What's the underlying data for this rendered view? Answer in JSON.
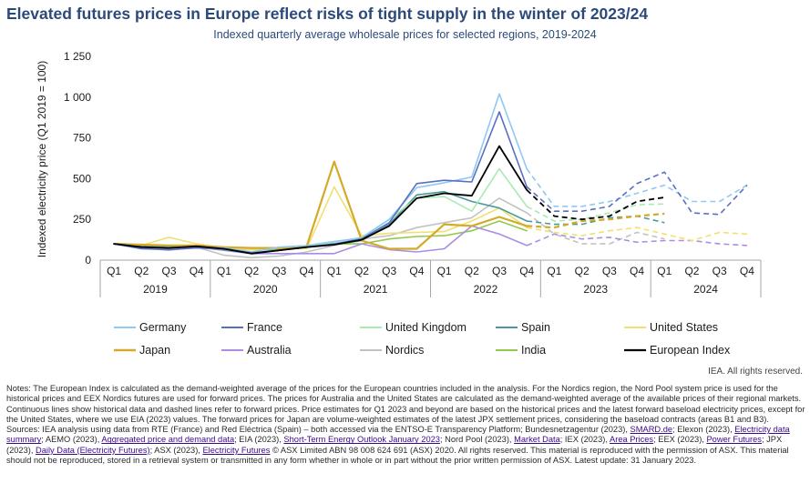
{
  "header": {
    "title": "Elevated futures prices in Europe reflect risks of tight supply in the winter of 2023/24",
    "subtitle": "Indexed quarterly average wholesale prices for selected regions, 2019-2024"
  },
  "chart_data": {
    "type": "line",
    "title": "Elevated futures prices in Europe reflect risks of tight supply in the winter of 2023/24",
    "subtitle": "Indexed quarterly average wholesale prices for selected regions, 2019-2024",
    "ylabel": "Indexed electricity price (Q1 2019 = 100)",
    "ylim": [
      0,
      1250
    ],
    "yticks": [
      0,
      250,
      500,
      750,
      1000,
      1250
    ],
    "ytick_labels": [
      "0",
      "250",
      "500",
      "750",
      "1 000",
      "1 250"
    ],
    "years": [
      "2019",
      "2020",
      "2021",
      "2022",
      "2023",
      "2024"
    ],
    "quarters": [
      "Q1",
      "Q2",
      "Q3",
      "Q4"
    ],
    "x": [
      "Q1 2019",
      "Q2 2019",
      "Q3 2019",
      "Q4 2019",
      "Q1 2020",
      "Q2 2020",
      "Q3 2020",
      "Q4 2020",
      "Q1 2021",
      "Q2 2021",
      "Q3 2021",
      "Q4 2021",
      "Q1 2022",
      "Q2 2022",
      "Q3 2022",
      "Q4 2022",
      "Q1 2023",
      "Q2 2023",
      "Q3 2023",
      "Q4 2023",
      "Q1 2024",
      "Q2 2024",
      "Q3 2024",
      "Q4 2024"
    ],
    "grid": "none",
    "legend_position": "bottom",
    "note": "Continuous lines show historical data and dashed lines refer to forward prices.",
    "series": [
      {
        "name": "Germany",
        "color": "#8fc8f2",
        "width": 1.6,
        "values": [
          100,
          80,
          75,
          80,
          75,
          50,
          80,
          90,
          115,
          135,
          250,
          445,
          475,
          510,
          1020,
          560,
          330,
          330,
          360,
          410,
          460,
          360,
          360,
          460
        ],
        "dashed_from": 15
      },
      {
        "name": "France",
        "color": "#5a6fc4",
        "width": 1.6,
        "values": [
          100,
          70,
          65,
          75,
          70,
          45,
          60,
          80,
          100,
          130,
          230,
          470,
          490,
          480,
          910,
          450,
          300,
          300,
          330,
          470,
          540,
          290,
          280,
          460
        ],
        "dashed_from": 15
      },
      {
        "name": "United Kingdom",
        "color": "#a8eab4",
        "width": 1.6,
        "values": [
          100,
          80,
          75,
          85,
          70,
          45,
          60,
          85,
          110,
          140,
          250,
          380,
          390,
          300,
          560,
          330,
          240,
          250,
          290,
          340,
          345,
          null,
          null,
          null
        ],
        "dashed_from": 15
      },
      {
        "name": "Spain",
        "color": "#4a9a9c",
        "width": 1.6,
        "values": [
          100,
          85,
          80,
          80,
          65,
          40,
          60,
          80,
          95,
          120,
          220,
          400,
          420,
          360,
          320,
          240,
          220,
          220,
          260,
          270,
          230,
          null,
          null,
          null
        ],
        "dashed_from": 15
      },
      {
        "name": "United States",
        "color": "#f1e070",
        "width": 1.6,
        "values": [
          100,
          90,
          140,
          100,
          75,
          65,
          75,
          70,
          450,
          150,
          165,
          170,
          175,
          240,
          320,
          200,
          170,
          150,
          180,
          200,
          160,
          120,
          170,
          160
        ],
        "dashed_from": 15
      },
      {
        "name": "Japan",
        "color": "#d4aa28",
        "width": 2.2,
        "values": [
          100,
          95,
          90,
          90,
          80,
          75,
          75,
          85,
          605,
          120,
          70,
          70,
          220,
          210,
          265,
          210,
          200,
          240,
          250,
          270,
          285,
          null,
          null,
          null
        ],
        "dashed_from": 15
      },
      {
        "name": "Australia",
        "color": "#a98ee4",
        "width": 1.6,
        "values": [
          100,
          90,
          80,
          80,
          60,
          40,
          40,
          40,
          40,
          100,
          65,
          50,
          70,
          210,
          160,
          90,
          160,
          130,
          140,
          110,
          120,
          120,
          100,
          90
        ],
        "dashed_from": 15
      },
      {
        "name": "Nordics",
        "color": "#c2c2c2",
        "width": 1.6,
        "values": [
          100,
          75,
          60,
          80,
          30,
          15,
          25,
          50,
          90,
          130,
          150,
          200,
          230,
          260,
          380,
          290,
          160,
          100,
          100,
          170,
          130,
          null,
          null,
          null
        ],
        "dashed_from": 15
      },
      {
        "name": "India",
        "color": "#92c84c",
        "width": 1.6,
        "values": [
          100,
          90,
          85,
          80,
          70,
          65,
          65,
          80,
          100,
          100,
          130,
          145,
          150,
          180,
          240,
          180,
          null,
          null,
          null,
          null,
          null,
          null,
          null,
          null
        ],
        "dashed_from": 99
      },
      {
        "name": "European Index",
        "color": "#000000",
        "width": 1.8,
        "values": [
          100,
          80,
          75,
          85,
          70,
          40,
          60,
          80,
          95,
          125,
          210,
          380,
          410,
          395,
          700,
          430,
          270,
          250,
          270,
          360,
          385,
          null,
          null,
          null
        ],
        "dashed_from": 15
      }
    ]
  },
  "legend": {
    "rows": [
      [
        "Germany",
        "France",
        "United Kingdom",
        "Spain",
        "United States"
      ],
      [
        "Japan",
        "Australia",
        "Nordics",
        "India",
        "European Index"
      ]
    ]
  },
  "footer": {
    "rights": "IEA. All rights reserved.",
    "notes_label": "Notes:",
    "notes_text": "The European Index is calculated as the demand-weighted average of the prices for the European countries included in the analysis. For the Nordics region, the Nord Pool system price is used for the historical prices and EEX Nordics futures are used for forward prices. The prices for Australia and the United States are calculated as the demand-weighted average of the available prices of their regional markets. Continuous lines show historical data and dashed lines refer to forward prices. Price estimates for Q1 2023 and beyond are based on the historical prices and the latest forward baseload electricity prices, except for the United States, where we use EIA (2023) values. The forward prices for Japan are volume-weighted estimates of the latest JPX settlement prices, considering the baseload contracts (areas B1 and B3).",
    "sources_label": "Sources:",
    "sources_segments": [
      {
        "text": "IEA analysis using data from RTE (France) and Red Eléctrica (Spain) – both accessed via the ENTSO-E Transparency Platform; Bundesnetzagentur (2023), ",
        "link": false
      },
      {
        "text": "SMARD.de",
        "link": true
      },
      {
        "text": "; Elexon (2023), ",
        "link": false
      },
      {
        "text": "Electricity data summary",
        "link": true
      },
      {
        "text": "; AEMO (2023), ",
        "link": false
      },
      {
        "text": "Aggregated price and demand data",
        "link": true
      },
      {
        "text": "; EIA (2023), ",
        "link": false
      },
      {
        "text": "Short-Term Energy Outlook January 2023",
        "link": true
      },
      {
        "text": "; Nord Pool (2023), ",
        "link": false
      },
      {
        "text": "Market Data",
        "link": true
      },
      {
        "text": "; IEX (2023), ",
        "link": false
      },
      {
        "text": "Area Prices",
        "link": true
      },
      {
        "text": "; EEX (2023), ",
        "link": false
      },
      {
        "text": "Power Futures",
        "link": true
      },
      {
        "text": "; JPX (2023), ",
        "link": false
      },
      {
        "text": "Daily Data (Electricity Futures)",
        "link": true
      },
      {
        "text": "; ASX (2023), ",
        "link": false
      },
      {
        "text": "Electricity Futures",
        "link": true
      },
      {
        "text": " © ASX Limited ABN 98 008 624 691 (ASX) 2020. All rights reserved. This material is reproduced with the permission of ASX. This material should not be reproduced, stored in a retrieval system or transmitted in any form whether in whole or in part without the prior written permission of ASX. Latest update: 31 January 2023.",
        "link": false
      }
    ]
  }
}
